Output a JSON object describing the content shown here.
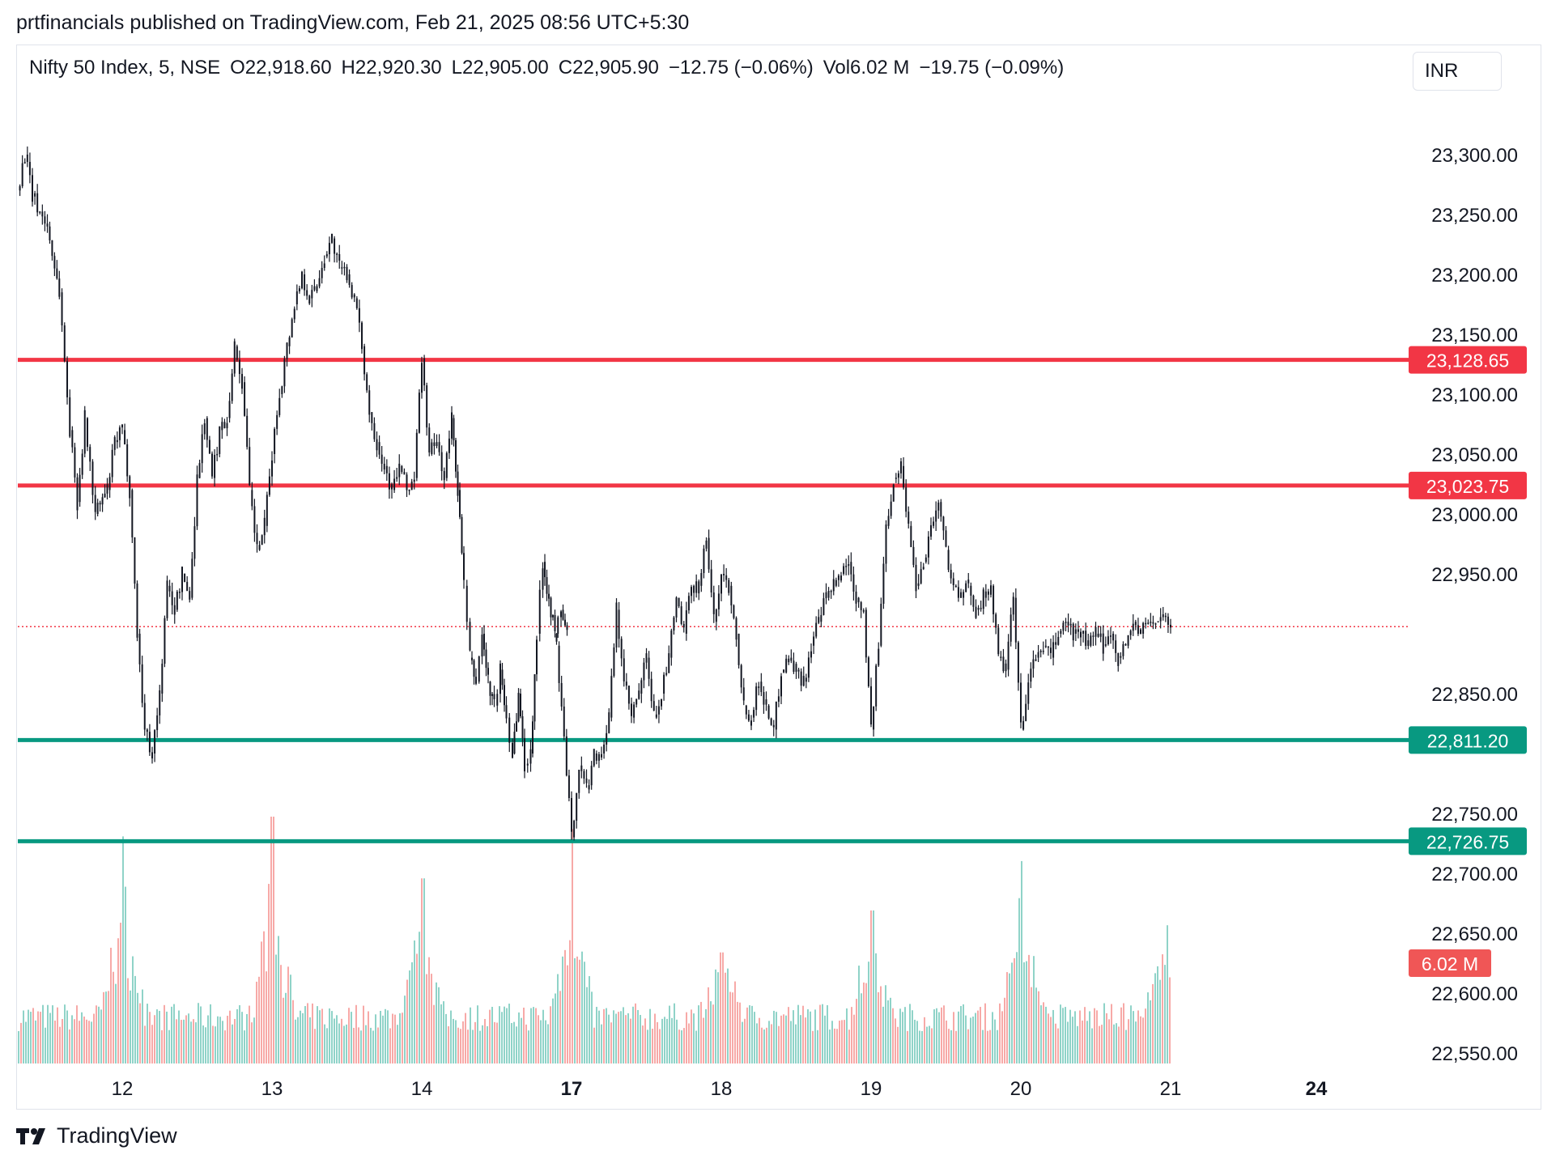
{
  "header": {
    "published_by": "prtfinancials published on TradingView.com, Feb 21, 2025 08:56 UTC+5:30"
  },
  "legend": {
    "symbol": "Nifty 50 Index, 5, NSE",
    "open": "O22,918.60",
    "high": "H22,920.30",
    "low": "L22,905.00",
    "close": "C22,905.90",
    "change": "−12.75 (−0.06%)",
    "volume": "Vol6.02 M",
    "vol_change": "−19.75 (−0.09%)"
  },
  "currency": "INR",
  "brand": {
    "name": "TradingView"
  },
  "colors": {
    "resistance": "#f23645",
    "support": "#089981",
    "candle": "#131722",
    "vol_up": "#8fd3c8",
    "vol_down": "#f7a9a7",
    "last_price": "#f23645",
    "vol_label": "#f05656"
  },
  "chart_data": {
    "type": "candlestick",
    "title": "",
    "timeframe": "5",
    "x_ticks": [
      {
        "label": "12",
        "day": 12,
        "bold": false
      },
      {
        "label": "13",
        "day": 13,
        "bold": false
      },
      {
        "label": "14",
        "day": 14,
        "bold": false
      },
      {
        "label": "17",
        "day": 17,
        "bold": true
      },
      {
        "label": "18",
        "day": 18,
        "bold": false
      },
      {
        "label": "19",
        "day": 19,
        "bold": false
      },
      {
        "label": "20",
        "day": 20,
        "bold": false
      },
      {
        "label": "21",
        "day": 21,
        "bold": false
      },
      {
        "label": "24",
        "day": 24,
        "bold": true
      }
    ],
    "y_ticks": [
      "23,300.00",
      "23,250.00",
      "23,200.00",
      "23,150.00",
      "23,100.00",
      "23,050.00",
      "23,000.00",
      "22,950.00",
      "22,850.00",
      "22,750.00",
      "22,700.00",
      "22,650.00",
      "22,600.00",
      "22,550.00"
    ],
    "y_tick_values": [
      23300,
      23250,
      23200,
      23150,
      23100,
      23050,
      23000,
      22950,
      22850,
      22750,
      22700,
      22650,
      22600,
      22550
    ],
    "ylim": [
      22540,
      23355
    ],
    "horizontal_levels": [
      {
        "label": "23,128.65",
        "value": 23128.65,
        "kind": "resistance"
      },
      {
        "label": "23,023.75",
        "value": 23023.75,
        "kind": "resistance"
      },
      {
        "label": "22,811.20",
        "value": 22811.2,
        "kind": "support"
      },
      {
        "label": "22,726.75",
        "value": 22726.75,
        "kind": "support"
      }
    ],
    "last_price": {
      "label": "22,905.90",
      "value": 22905.9
    },
    "last_volume": {
      "label": "6.02 M"
    },
    "price_path": [
      [
        11.3,
        23270
      ],
      [
        11.35,
        23300
      ],
      [
        11.4,
        23265
      ],
      [
        11.5,
        23240
      ],
      [
        11.58,
        23185
      ],
      [
        11.65,
        23070
      ],
      [
        11.7,
        23010
      ],
      [
        11.75,
        23080
      ],
      [
        11.82,
        23000
      ],
      [
        11.9,
        23020
      ],
      [
        11.95,
        23060
      ],
      [
        12.0,
        23070
      ],
      [
        12.05,
        23020
      ],
      [
        12.1,
        22900
      ],
      [
        12.15,
        22820
      ],
      [
        12.2,
        22800
      ],
      [
        12.25,
        22850
      ],
      [
        12.3,
        22940
      ],
      [
        12.35,
        22920
      ],
      [
        12.4,
        22950
      ],
      [
        12.45,
        22930
      ],
      [
        12.5,
        23030
      ],
      [
        12.55,
        23080
      ],
      [
        12.6,
        23030
      ],
      [
        12.65,
        23070
      ],
      [
        12.7,
        23080
      ],
      [
        12.75,
        23140
      ],
      [
        12.8,
        23110
      ],
      [
        12.85,
        23020
      ],
      [
        12.9,
        22970
      ],
      [
        12.95,
        22990
      ],
      [
        13.0,
        23050
      ],
      [
        13.05,
        23100
      ],
      [
        13.1,
        23140
      ],
      [
        13.15,
        23175
      ],
      [
        13.2,
        23200
      ],
      [
        13.25,
        23180
      ],
      [
        13.3,
        23190
      ],
      [
        13.35,
        23215
      ],
      [
        13.4,
        23230
      ],
      [
        13.45,
        23205
      ],
      [
        13.5,
        23200
      ],
      [
        13.55,
        23180
      ],
      [
        13.6,
        23140
      ],
      [
        13.65,
        23085
      ],
      [
        13.7,
        23060
      ],
      [
        13.75,
        23040
      ],
      [
        13.8,
        23020
      ],
      [
        13.85,
        23040
      ],
      [
        13.9,
        23020
      ],
      [
        13.95,
        23030
      ],
      [
        14.0,
        23130
      ],
      [
        14.05,
        23050
      ],
      [
        14.1,
        23060
      ],
      [
        14.15,
        23030
      ],
      [
        14.2,
        23080
      ],
      [
        14.25,
        23020
      ],
      [
        14.3,
        22940
      ],
      [
        14.35,
        22880
      ],
      [
        14.4,
        22860
      ],
      [
        14.45,
        22900
      ],
      [
        14.5,
        22860
      ],
      [
        14.55,
        22840
      ],
      [
        14.6,
        22870
      ],
      [
        14.65,
        22830
      ],
      [
        14.7,
        22800
      ],
      [
        14.75,
        22850
      ],
      [
        14.8,
        22790
      ],
      [
        14.85,
        22800
      ],
      [
        14.9,
        22900
      ],
      [
        14.95,
        22960
      ],
      [
        15.0,
        22930
      ],
      [
        15.05,
        22900
      ],
      [
        15.1,
        22920
      ],
      [
        15.15,
        22900
      ],
      [
        16.9,
        22890
      ],
      [
        17.0,
        22730
      ],
      [
        17.05,
        22790
      ],
      [
        17.1,
        22770
      ],
      [
        17.15,
        22800
      ],
      [
        17.2,
        22800
      ],
      [
        17.25,
        22830
      ],
      [
        17.3,
        22920
      ],
      [
        17.35,
        22860
      ],
      [
        17.4,
        22830
      ],
      [
        17.45,
        22850
      ],
      [
        17.5,
        22880
      ],
      [
        17.55,
        22830
      ],
      [
        17.6,
        22850
      ],
      [
        17.65,
        22880
      ],
      [
        17.7,
        22930
      ],
      [
        17.75,
        22900
      ],
      [
        17.8,
        22940
      ],
      [
        17.85,
        22940
      ],
      [
        17.9,
        22980
      ],
      [
        17.95,
        22910
      ],
      [
        18.0,
        22950
      ],
      [
        18.05,
        22940
      ],
      [
        18.1,
        22900
      ],
      [
        18.15,
        22840
      ],
      [
        18.2,
        22830
      ],
      [
        18.25,
        22860
      ],
      [
        18.3,
        22840
      ],
      [
        18.35,
        22820
      ],
      [
        18.4,
        22870
      ],
      [
        18.45,
        22880
      ],
      [
        18.5,
        22870
      ],
      [
        18.55,
        22860
      ],
      [
        18.6,
        22890
      ],
      [
        18.65,
        22910
      ],
      [
        18.7,
        22930
      ],
      [
        18.75,
        22940
      ],
      [
        18.8,
        22950
      ],
      [
        18.85,
        22960
      ],
      [
        18.9,
        22930
      ],
      [
        18.95,
        22920
      ],
      [
        19.0,
        22820
      ],
      [
        19.05,
        22890
      ],
      [
        19.1,
        22990
      ],
      [
        19.15,
        23030
      ],
      [
        19.2,
        23040
      ],
      [
        19.25,
        22990
      ],
      [
        19.3,
        22940
      ],
      [
        19.35,
        22960
      ],
      [
        19.4,
        22990
      ],
      [
        19.45,
        23010
      ],
      [
        19.5,
        22970
      ],
      [
        19.55,
        22940
      ],
      [
        19.6,
        22930
      ],
      [
        19.65,
        22940
      ],
      [
        19.7,
        22920
      ],
      [
        19.75,
        22930
      ],
      [
        19.8,
        22940
      ],
      [
        19.85,
        22880
      ],
      [
        19.9,
        22870
      ],
      [
        19.95,
        22930
      ],
      [
        20.0,
        22820
      ],
      [
        20.05,
        22860
      ],
      [
        20.1,
        22880
      ],
      [
        20.15,
        22890
      ],
      [
        20.2,
        22880
      ],
      [
        20.25,
        22900
      ],
      [
        20.3,
        22910
      ],
      [
        20.35,
        22900
      ],
      [
        20.4,
        22900
      ],
      [
        20.45,
        22890
      ],
      [
        20.5,
        22900
      ],
      [
        20.55,
        22890
      ],
      [
        20.6,
        22900
      ],
      [
        20.65,
        22880
      ],
      [
        20.7,
        22890
      ],
      [
        20.75,
        22910
      ],
      [
        20.8,
        22900
      ],
      [
        20.85,
        22910
      ],
      [
        20.9,
        22910
      ],
      [
        20.95,
        22915
      ],
      [
        21.0,
        22906
      ]
    ]
  }
}
